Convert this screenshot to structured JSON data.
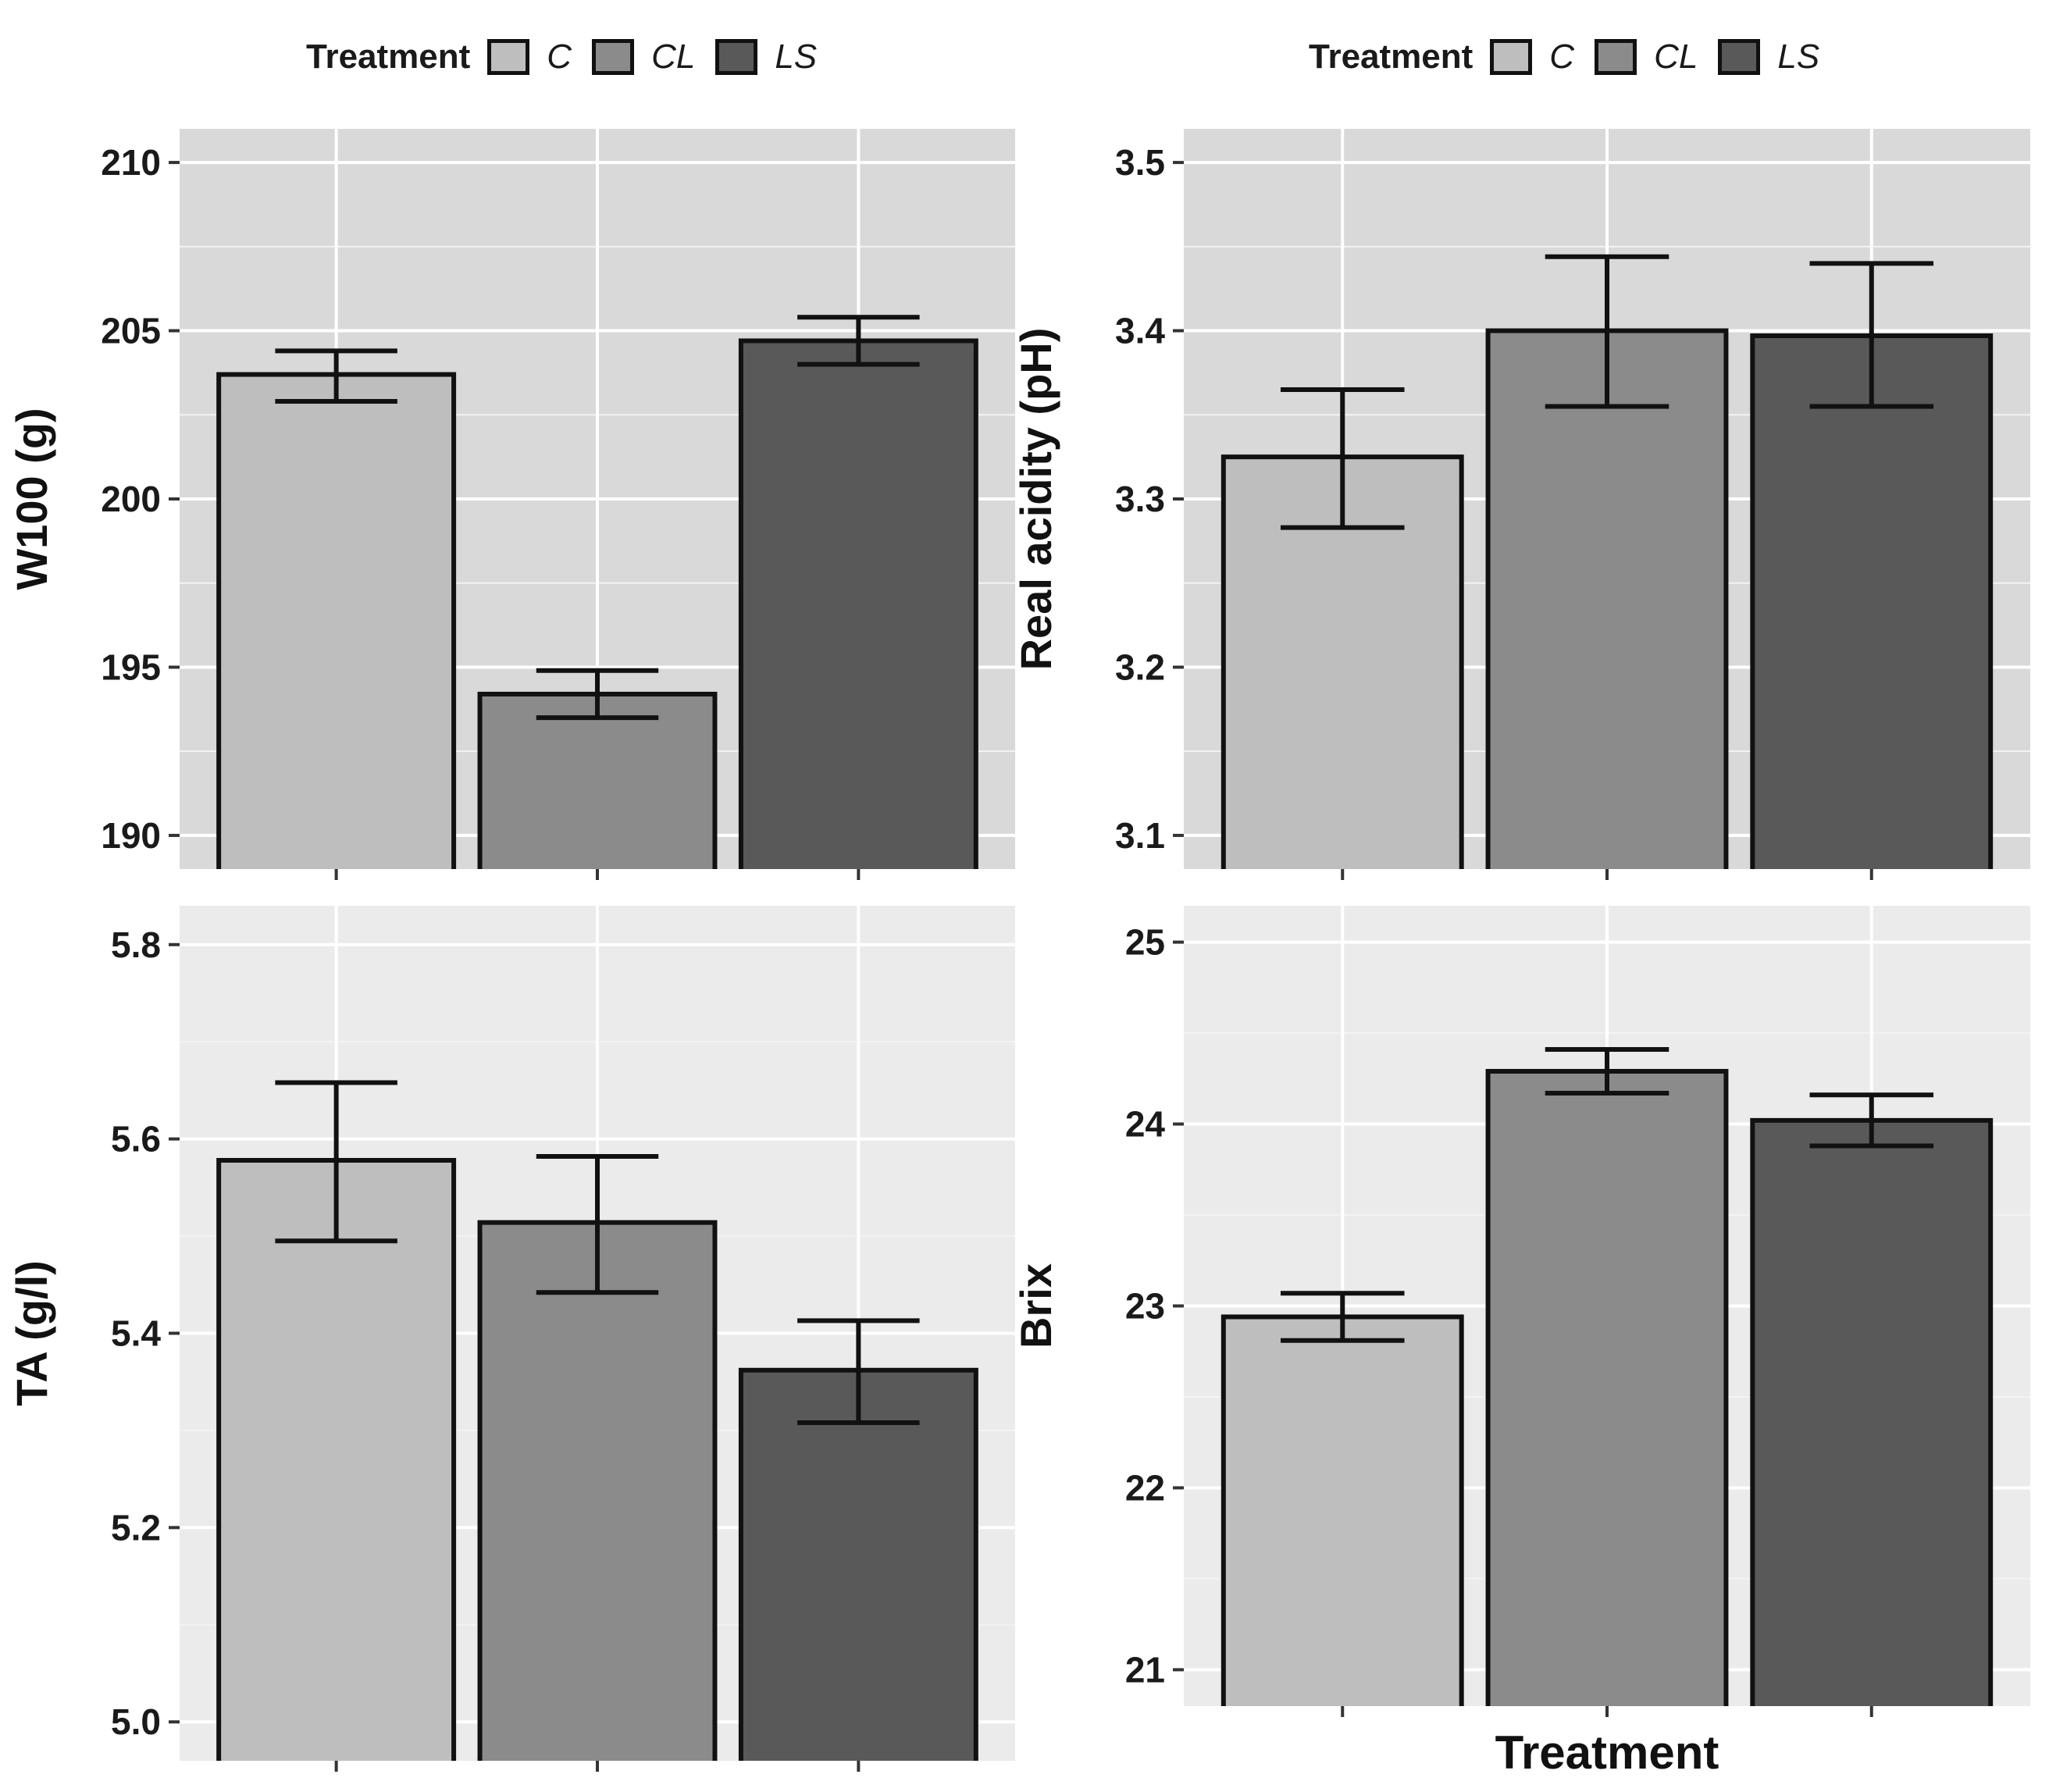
{
  "legend": {
    "title": "Treatment",
    "items": [
      {
        "label": "C",
        "color": "#bebebe"
      },
      {
        "label": "CL",
        "color": "#8b8b8b"
      },
      {
        "label": "LS",
        "color": "#595959"
      }
    ]
  },
  "chart_data": [
    {
      "type": "bar",
      "categories": [
        "C",
        "CL",
        "LS"
      ],
      "values": [
        203.7,
        194.2,
        204.7
      ],
      "errors": [
        [
          202.9,
          204.4
        ],
        [
          193.5,
          194.9
        ],
        [
          204.0,
          205.4
        ]
      ],
      "ylabel": "W100 (g)",
      "xlabel": "",
      "ylim": [
        189.0,
        211.0
      ],
      "yticks": [
        190,
        195,
        200,
        205,
        210
      ],
      "ytick_labels": [
        "190",
        "195",
        "200",
        "205",
        "210"
      ],
      "panel_bg": "#d9d9d9",
      "grid": true
    },
    {
      "type": "bar",
      "categories": [
        "C",
        "CL",
        "LS"
      ],
      "values": [
        3.325,
        3.4,
        3.397
      ],
      "errors": [
        [
          3.283,
          3.365
        ],
        [
          3.355,
          3.444
        ],
        [
          3.355,
          3.44
        ]
      ],
      "ylabel": "Real acidity (pH)",
      "xlabel": "",
      "ylim": [
        3.08,
        3.52
      ],
      "yticks": [
        3.1,
        3.2,
        3.3,
        3.4,
        3.5
      ],
      "ytick_labels": [
        "3.1",
        "3.2",
        "3.3",
        "3.4",
        "3.5"
      ],
      "panel_bg": "#d9d9d9",
      "grid": true
    },
    {
      "type": "bar",
      "categories": [
        "C",
        "CL",
        "LS"
      ],
      "values": [
        5.578,
        5.514,
        5.362
      ],
      "errors": [
        [
          5.495,
          5.658
        ],
        [
          5.442,
          5.582
        ],
        [
          5.308,
          5.413
        ]
      ],
      "ylabel": "TA (g/l)",
      "xlabel": "",
      "ylim": [
        4.96,
        5.84
      ],
      "yticks": [
        5.0,
        5.2,
        5.4,
        5.6,
        5.8
      ],
      "ytick_labels": [
        "5.0",
        "5.2",
        "5.4",
        "5.6",
        "5.8"
      ],
      "panel_bg": "#ebebeb",
      "grid": true
    },
    {
      "type": "bar",
      "categories": [
        "C",
        "CL",
        "LS"
      ],
      "values": [
        22.94,
        24.29,
        24.02
      ],
      "errors": [
        [
          22.81,
          23.07
        ],
        [
          24.17,
          24.41
        ],
        [
          23.88,
          24.16
        ]
      ],
      "ylabel": "Brix",
      "xlabel": "Treatment",
      "ylim": [
        20.8,
        25.2
      ],
      "yticks": [
        21,
        22,
        23,
        24,
        25
      ],
      "ytick_labels": [
        "21",
        "22",
        "23",
        "24",
        "25"
      ],
      "panel_bg": "#ebebeb",
      "grid": true
    }
  ]
}
